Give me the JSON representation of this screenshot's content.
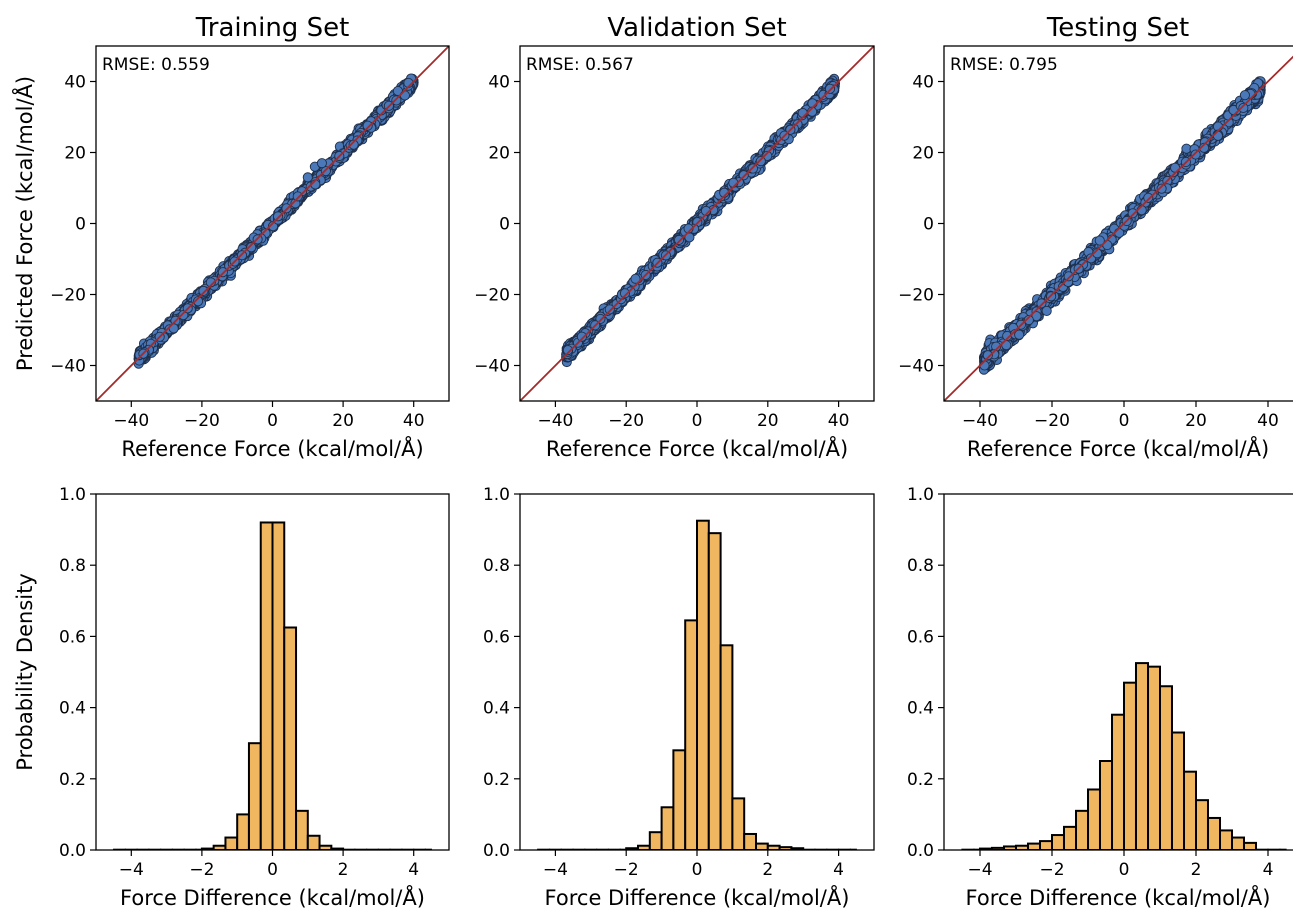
{
  "colors": {
    "scatter_fill": "#4a78b8",
    "scatter_edge": "#1f2f4a",
    "identity_line": "#a52a2a",
    "bar_fill": "#f0b660",
    "bar_edge": "#000000"
  },
  "chart_data": [
    {
      "type": "scatter",
      "panel": "train-scatter",
      "title": "Training Set",
      "xlabel": "Reference Force (kcal/mol/Å)",
      "ylabel": "Predicted Force (kcal/mol/Å)",
      "xlim": [
        -50,
        50
      ],
      "ylim": [
        -50,
        50
      ],
      "xticks": [
        -40,
        -20,
        0,
        20,
        40
      ],
      "yticks": [
        -40,
        -20,
        0,
        20,
        40
      ],
      "annotation": "RMSE: 0.559",
      "reference_line": "y = x",
      "data_range": [
        -38,
        40
      ],
      "spread": 0.56,
      "outliers": [
        [
          12,
          16
        ],
        [
          10,
          13
        ],
        [
          14,
          17
        ]
      ]
    },
    {
      "type": "scatter",
      "panel": "val-scatter",
      "title": "Validation Set",
      "xlabel": "Reference Force (kcal/mol/Å)",
      "ylabel": "",
      "xlim": [
        -50,
        50
      ],
      "ylim": [
        -50,
        50
      ],
      "xticks": [
        -40,
        -20,
        0,
        20,
        40
      ],
      "yticks": [
        -40,
        -20,
        0,
        20,
        40
      ],
      "annotation": "RMSE: 0.567",
      "reference_line": "y = x",
      "data_range": [
        -37,
        39
      ],
      "spread": 0.57,
      "outliers": []
    },
    {
      "type": "scatter",
      "panel": "test-scatter",
      "title": "Testing Set",
      "xlabel": "Reference Force (kcal/mol/Å)",
      "ylabel": "",
      "xlim": [
        -50,
        50
      ],
      "ylim": [
        -50,
        50
      ],
      "xticks": [
        -40,
        -20,
        0,
        20,
        40
      ],
      "yticks": [
        -40,
        -20,
        0,
        20,
        40
      ],
      "annotation": "RMSE: 0.795",
      "reference_line": "y = x",
      "data_range": [
        -39,
        38
      ],
      "spread": 0.8,
      "outliers": []
    },
    {
      "type": "bar",
      "panel": "train-hist",
      "xlabel": "Force Difference (kcal/mol/Å)",
      "ylabel": "Probability Density",
      "xlim": [
        -5,
        5
      ],
      "ylim": [
        0,
        1.0
      ],
      "xticks": [
        -4,
        -2,
        0,
        2,
        4
      ],
      "yticks": [
        0.0,
        0.2,
        0.4,
        0.6,
        0.8,
        1.0
      ],
      "bin_edges": [
        -2.0,
        -1.667,
        -1.333,
        -1.0,
        -0.667,
        -0.333,
        0.0,
        0.333,
        0.667,
        1.0,
        1.333,
        1.667,
        2.0
      ],
      "values": [
        0.004,
        0.012,
        0.035,
        0.1,
        0.3,
        0.92,
        0.92,
        0.625,
        0.11,
        0.04,
        0.012,
        0.004
      ],
      "tails": {
        "range": [
          -4.5,
          4.5
        ],
        "value": 0.002
      }
    },
    {
      "type": "bar",
      "panel": "val-hist",
      "xlabel": "Force Difference (kcal/mol/Å)",
      "ylabel": "",
      "xlim": [
        -5,
        5
      ],
      "ylim": [
        0,
        1.0
      ],
      "xticks": [
        -4,
        -2,
        0,
        2,
        4
      ],
      "yticks": [
        0.0,
        0.2,
        0.4,
        0.6,
        0.8,
        1.0
      ],
      "bin_edges": [
        -2.0,
        -1.667,
        -1.333,
        -1.0,
        -0.667,
        -0.333,
        0.0,
        0.333,
        0.667,
        1.0,
        1.333,
        1.667,
        2.0,
        2.333,
        2.667,
        3.0
      ],
      "values": [
        0.005,
        0.012,
        0.05,
        0.12,
        0.28,
        0.645,
        0.925,
        0.89,
        0.575,
        0.145,
        0.045,
        0.018,
        0.012,
        0.008,
        0.005
      ],
      "tails": {
        "range": [
          -4.5,
          4.5
        ],
        "value": 0.002
      }
    },
    {
      "type": "bar",
      "panel": "test-hist",
      "xlabel": "Force Difference (kcal/mol/Å)",
      "ylabel": "",
      "xlim": [
        -5,
        5
      ],
      "ylim": [
        0,
        1.0
      ],
      "xticks": [
        -4,
        -2,
        0,
        2,
        4
      ],
      "yticks": [
        0.0,
        0.2,
        0.4,
        0.6,
        0.8,
        1.0
      ],
      "bin_edges": [
        -4.0,
        -3.667,
        -3.333,
        -3.0,
        -2.667,
        -2.333,
        -2.0,
        -1.667,
        -1.333,
        -1.0,
        -0.667,
        -0.333,
        0.0,
        0.333,
        0.667,
        1.0,
        1.333,
        1.667,
        2.0,
        2.333,
        2.667,
        3.0,
        3.333,
        3.667
      ],
      "values": [
        0.004,
        0.006,
        0.01,
        0.012,
        0.018,
        0.025,
        0.042,
        0.065,
        0.11,
        0.17,
        0.25,
        0.38,
        0.47,
        0.525,
        0.515,
        0.46,
        0.33,
        0.22,
        0.14,
        0.09,
        0.055,
        0.035,
        0.02
      ],
      "tails": {
        "range": [
          -4.5,
          4.5
        ],
        "value": 0.002
      }
    }
  ]
}
